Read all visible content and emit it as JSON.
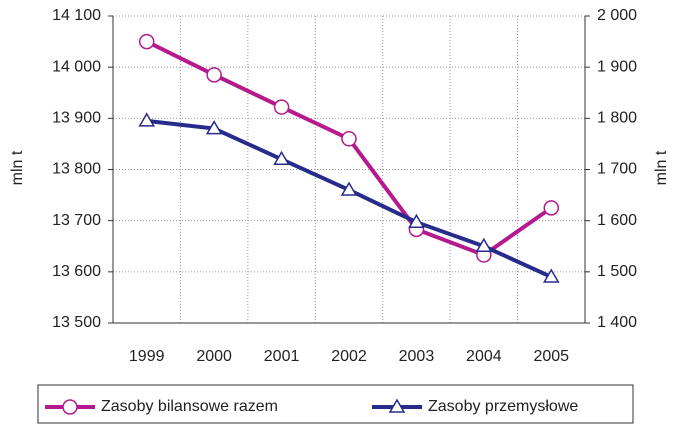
{
  "chart_data": {
    "type": "line",
    "y_label": "mln t",
    "y2_label": "mln t",
    "categories": [
      "1999",
      "2000",
      "2001",
      "2002",
      "2003",
      "2004",
      "2005"
    ],
    "series": [
      {
        "name": "Zasoby bilansowe razem",
        "color": "#b5198e",
        "marker": "circle",
        "values": [
          14050,
          13985,
          13922,
          13860,
          13683,
          13633,
          13725
        ]
      },
      {
        "name": "Zasoby przemysłowe",
        "color": "#262b8c",
        "marker": "triangle",
        "axis": "y2",
        "values": [
          1795,
          1780,
          1720,
          1660,
          1597,
          1550,
          1490
        ]
      }
    ],
    "ylim": [
      13500,
      14100
    ],
    "yticks": [
      {
        "value": 13500,
        "label": "13 500"
      },
      {
        "value": 13600,
        "label": "13 600"
      },
      {
        "value": 13700,
        "label": "13 700"
      },
      {
        "value": 13800,
        "label": "13 800"
      },
      {
        "value": 13900,
        "label": "13 900"
      },
      {
        "value": 14000,
        "label": "14 000"
      },
      {
        "value": 14100,
        "label": "14 100"
      }
    ],
    "y2lim": [
      1400,
      2000
    ],
    "y2ticks": [
      {
        "value": 1400,
        "label": "1 400"
      },
      {
        "value": 1500,
        "label": "1 500"
      },
      {
        "value": 1600,
        "label": "1 600"
      },
      {
        "value": 1700,
        "label": "1 700"
      },
      {
        "value": 1800,
        "label": "1 800"
      },
      {
        "value": 1900,
        "label": "1 900"
      },
      {
        "value": 2000,
        "label": "2 000"
      }
    ],
    "grid": true,
    "legend": "bottom"
  }
}
